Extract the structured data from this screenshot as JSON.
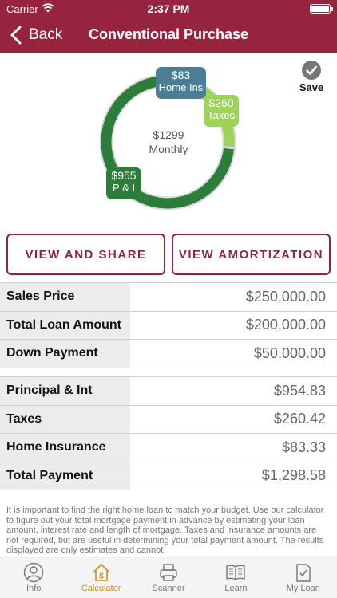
{
  "status_bar": {
    "carrier": "Carrier",
    "time": "2:37 PM"
  },
  "nav": {
    "back_label": "Back",
    "title": "Conventional Purchase"
  },
  "save": {
    "label": "Save"
  },
  "chart_data": {
    "type": "pie",
    "center_amount": "$1299",
    "center_label": "Monthly",
    "slices": [
      {
        "name": "Home Ins",
        "label": "$83",
        "value": 83.33,
        "color": "#4b7d95"
      },
      {
        "name": "Taxes",
        "label": "$260",
        "value": 260.42,
        "color": "#9ed35a"
      },
      {
        "name": "P & I",
        "label": "$955",
        "value": 954.83,
        "color": "#2c7d3a"
      }
    ]
  },
  "buttons": {
    "share_label": "VIEW AND SHARE",
    "amort_label": "VIEW AMORTIZATION"
  },
  "loan_table": [
    {
      "label": "Sales Price",
      "value": "$250,000.00"
    },
    {
      "label": "Total Loan Amount",
      "value": "$200,000.00"
    },
    {
      "label": "Down Payment",
      "value": "$50,000.00"
    }
  ],
  "payment_table": [
    {
      "label": "Principal & Int",
      "value": "$954.83"
    },
    {
      "label": "Taxes",
      "value": "$260.42"
    },
    {
      "label": "Home Insurance",
      "value": "$83.33"
    },
    {
      "label": "Total Payment",
      "value": "$1,298.58"
    }
  ],
  "disclaimer": "It is important to find the right home loan to match your budget. Use our calculator to figure out your total mortgage payment in advance by estimating your loan amount, interest rate and length of mortgage. Taxes and insurance amounts are not required, but are useful in determining your total payment amount. The results displayed are only estimates and cannot",
  "tabs": [
    {
      "label": "Info",
      "icon": "person-icon",
      "active": false
    },
    {
      "label": "Calculator",
      "icon": "house-dollar-icon",
      "active": true
    },
    {
      "label": "Scanner",
      "icon": "scanner-icon",
      "active": false
    },
    {
      "label": "Learn",
      "icon": "book-icon",
      "active": false
    },
    {
      "label": "My Loan",
      "icon": "checklist-icon",
      "active": false
    }
  ],
  "colors": {
    "brand": "#97243f",
    "button_border": "#8e2440",
    "active_tab": "#d98a1b"
  }
}
